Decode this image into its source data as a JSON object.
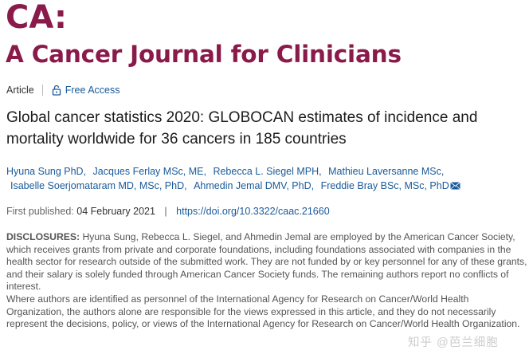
{
  "journal": {
    "short_name": "CA:",
    "full_name": "A Cancer Journal for Clinicians",
    "brand_color": "#8a1a4a"
  },
  "meta": {
    "article_type": "Article",
    "access_icon": "lock-open-icon",
    "access_label": "Free Access",
    "link_color": "#1a5a9a"
  },
  "article": {
    "title": "Global cancer statistics 2020: GLOBOCAN estimates of incidence and mortality worldwide for 36 cancers in 185 countries",
    "authors": [
      "Hyuna Sung PhD,",
      "Jacques Ferlay MSc, ME,",
      "Rebecca L. Siegel MPH,",
      "Mathieu Laversanne MSc,",
      "Isabelle Soerjomataram MD, MSc, PhD,",
      "Ahmedin Jemal DMV, PhD,",
      "Freddie Bray BSc, MSc, PhD"
    ],
    "mail_icon": "envelope-icon",
    "published_label": "First published:",
    "published_date": "04 February 2021",
    "separator": "|",
    "doi": "https://doi.org/10.3322/caac.21660"
  },
  "disclosures": {
    "label": "DISCLOSURES:",
    "paragraph_1": "Hyuna Sung, Rebecca L. Siegel, and Ahmedin Jemal are employed by the American Cancer Society, which receives grants from private and corporate foundations, including foundations associated with companies in the health sector for research outside of the submitted work. They are not funded by or key personnel for any of these grants, and their salary is solely funded through American Cancer Society funds. The remaining authors report no conflicts of interest.",
    "paragraph_2": "Where authors are identified as personnel of the International Agency for Research on Cancer/World Health Organization, the authors alone are responsible for the views expressed in this article, and they do not necessarily represent the decisions, policy, or views of the International Agency for Research on Cancer/World Health Organization."
  },
  "watermark": {
    "text": "知乎 @芭兰细胞"
  }
}
